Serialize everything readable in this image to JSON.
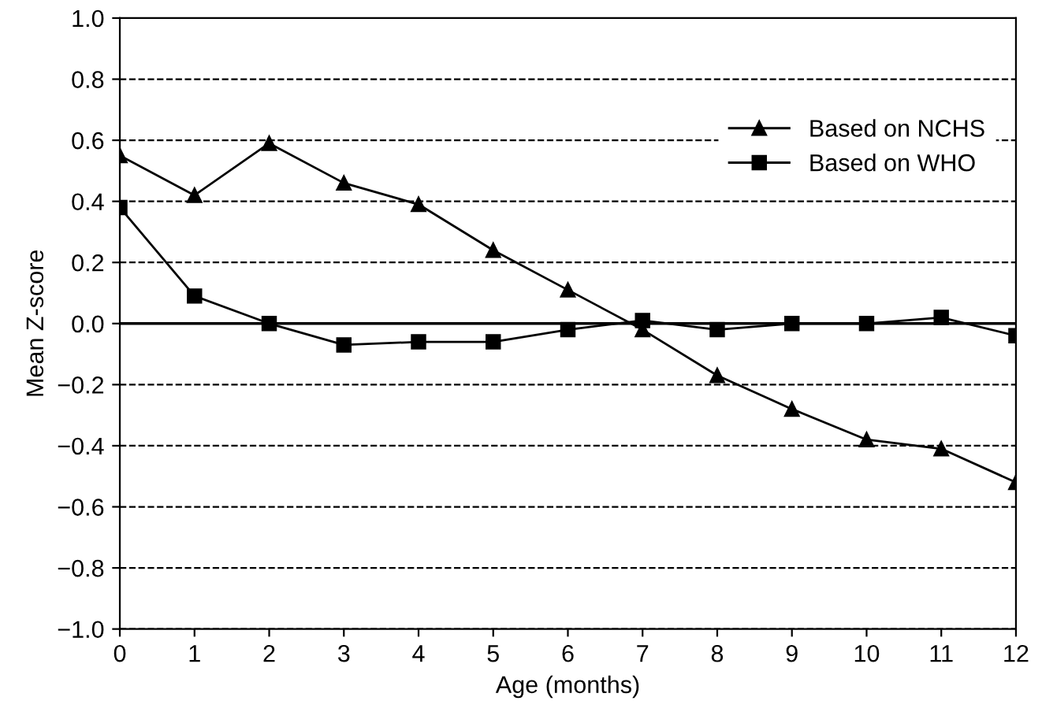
{
  "chart_data": {
    "type": "line",
    "xlabel": "Age (months)",
    "ylabel": "Mean Z-score",
    "x": [
      0,
      1,
      2,
      3,
      4,
      5,
      6,
      7,
      8,
      9,
      10,
      11,
      12
    ],
    "series": [
      {
        "name": "Based on NCHS",
        "color": "#000000",
        "marker": "triangle",
        "values": [
          0.55,
          0.42,
          0.59,
          0.46,
          0.39,
          0.24,
          0.11,
          -0.02,
          -0.17,
          -0.28,
          -0.38,
          -0.41,
          -0.52
        ]
      },
      {
        "name": "Based on WHO",
        "color": "#000000",
        "marker": "square",
        "values": [
          0.38,
          0.09,
          0.0,
          -0.07,
          -0.06,
          -0.06,
          -0.02,
          0.01,
          -0.02,
          0.0,
          0.0,
          0.02,
          -0.04
        ]
      }
    ],
    "xlim": [
      0,
      12
    ],
    "xticks": [
      0,
      1,
      2,
      3,
      4,
      5,
      6,
      7,
      8,
      9,
      10,
      11,
      12
    ],
    "ylim": [
      -1.0,
      1.0
    ],
    "yticks": [
      {
        "value": -1.0,
        "label": "−1.0"
      },
      {
        "value": -0.8,
        "label": "−0.8"
      },
      {
        "value": -0.6,
        "label": "−0.6"
      },
      {
        "value": -0.4,
        "label": "−0.4"
      },
      {
        "value": -0.2,
        "label": "−0.2"
      },
      {
        "value": 0.0,
        "label": "0.0"
      },
      {
        "value": 0.2,
        "label": "0.2"
      },
      {
        "value": 0.4,
        "label": "0.4"
      },
      {
        "value": 0.6,
        "label": "0.6"
      },
      {
        "value": 0.8,
        "label": "0.8"
      },
      {
        "value": 1.0,
        "label": "1.0"
      }
    ],
    "grid": "y",
    "ref_lines": [
      {
        "axis": "y",
        "value": 0.0,
        "label": null,
        "color": "#000000",
        "line_style": "solid"
      }
    ],
    "legend": "top right",
    "line_style": "solid"
  }
}
